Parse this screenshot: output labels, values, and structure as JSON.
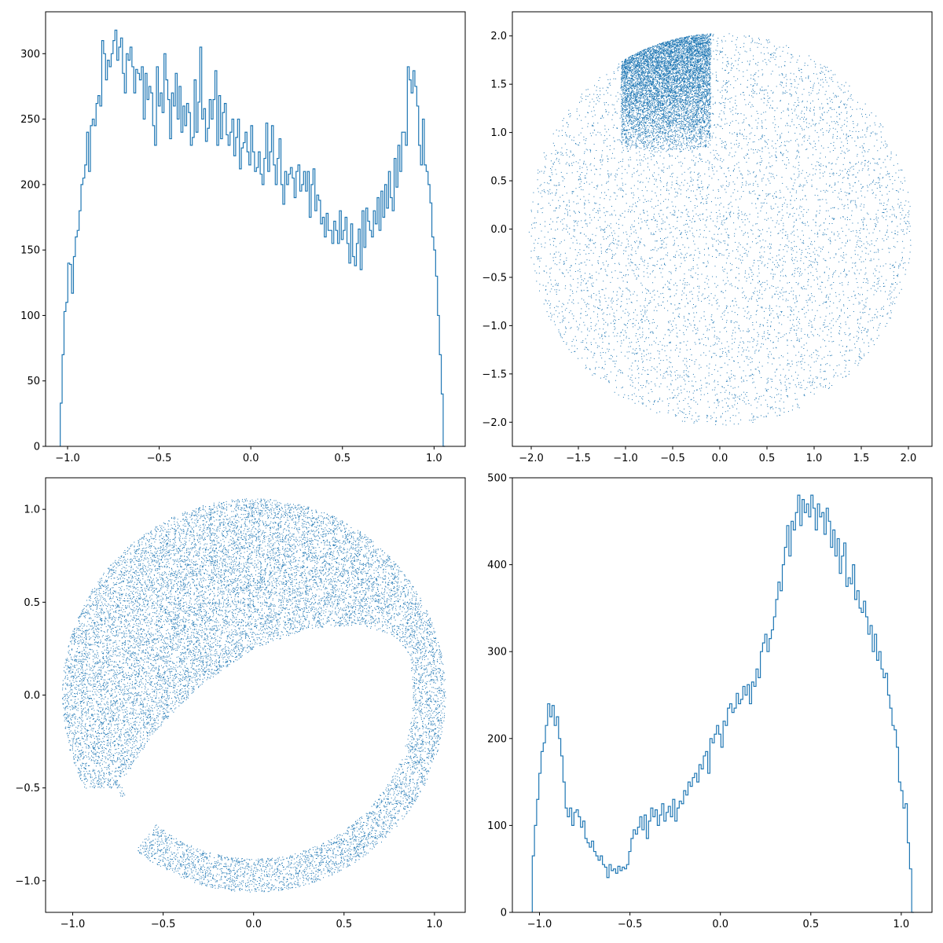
{
  "colors": {
    "series": "#1f77b4",
    "axes": "#000000",
    "background": "#ffffff"
  },
  "chart_data": [
    {
      "id": "top-left",
      "type": "histogram",
      "histtype": "step",
      "title": "",
      "xlabel": "",
      "ylabel": "",
      "xlim": [
        -1.12,
        1.17
      ],
      "ylim": [
        0,
        332
      ],
      "xticks": [
        -1.0,
        -0.5,
        0.0,
        0.5,
        1.0
      ],
      "yticks": [
        0,
        50,
        100,
        150,
        200,
        250,
        300
      ],
      "bin_range": [
        -1.04,
        1.06
      ],
      "counts": [
        33,
        70,
        103,
        110,
        140,
        139,
        117,
        145,
        160,
        165,
        180,
        200,
        205,
        215,
        240,
        210,
        245,
        250,
        245,
        262,
        268,
        260,
        310,
        300,
        280,
        295,
        290,
        300,
        310,
        318,
        295,
        305,
        312,
        285,
        270,
        300,
        295,
        305,
        290,
        270,
        288,
        285,
        280,
        290,
        250,
        285,
        265,
        275,
        270,
        245,
        230,
        290,
        260,
        270,
        255,
        300,
        280,
        265,
        235,
        270,
        260,
        285,
        250,
        275,
        240,
        260,
        245,
        262,
        255,
        230,
        236,
        280,
        240,
        263,
        305,
        250,
        258,
        233,
        243,
        265,
        250,
        265,
        287,
        230,
        268,
        235,
        255,
        262,
        238,
        230,
        240,
        250,
        222,
        236,
        250,
        212,
        228,
        232,
        240,
        225,
        215,
        245,
        225,
        210,
        213,
        225,
        208,
        200,
        220,
        247,
        210,
        225,
        245,
        215,
        200,
        220,
        235,
        200,
        185,
        210,
        200,
        208,
        213,
        205,
        190,
        210,
        215,
        195,
        200,
        210,
        195,
        210,
        175,
        200,
        212,
        180,
        192,
        188,
        170,
        175,
        160,
        178,
        165,
        165,
        155,
        172,
        165,
        155,
        180,
        158,
        165,
        175,
        155,
        140,
        170,
        145,
        138,
        155,
        166,
        135,
        180,
        152,
        182,
        172,
        165,
        160,
        180,
        170,
        190,
        165,
        195,
        175,
        200,
        182,
        210,
        190,
        180,
        220,
        198,
        230,
        210,
        240,
        240,
        230,
        290,
        280,
        270,
        287,
        275,
        260,
        230,
        215,
        250,
        215,
        210,
        200,
        186,
        160,
        150,
        130,
        100,
        70,
        40,
        0
      ]
    },
    {
      "id": "top-right",
      "type": "scatter",
      "title": "",
      "xlabel": "",
      "ylabel": "",
      "xlim": [
        -2.2,
        2.25
      ],
      "ylim": [
        -2.25,
        2.25
      ],
      "xticks": [
        -2.0,
        -1.5,
        -1.0,
        -0.5,
        0.0,
        0.5,
        1.0,
        1.5,
        2.0
      ],
      "yticks": [
        -2.0,
        -1.5,
        -1.0,
        -0.5,
        0.0,
        0.5,
        1.0,
        1.5,
        2.0
      ],
      "marker_size_px": 1,
      "disk_radius": 2.03,
      "dense_cluster": {
        "x_range": [
          -1.05,
          -0.1
        ],
        "y_range": [
          0.8,
          2.03
        ]
      }
    },
    {
      "id": "bottom-left",
      "type": "scatter",
      "title": "",
      "xlabel": "",
      "ylabel": "",
      "xlim": [
        -1.15,
        1.17
      ],
      "ylim": [
        -1.17,
        1.17
      ],
      "xticks": [
        -1.0,
        -0.5,
        0.0,
        0.5,
        1.0
      ],
      "yticks": [
        -1.0,
        -0.5,
        0.0,
        0.5,
        1.0
      ],
      "marker_size_px": 1,
      "annulus": {
        "outer_radius": 1.06,
        "inner_radius": 0.88
      },
      "filled_cap_boundary": [
        [
          -0.72,
          -0.45
        ],
        [
          -0.55,
          -0.2
        ],
        [
          -0.3,
          0.05
        ],
        [
          0.0,
          0.25
        ],
        [
          0.3,
          0.36
        ],
        [
          0.6,
          0.38
        ],
        [
          0.8,
          0.3
        ],
        [
          0.95,
          0.1
        ]
      ]
    },
    {
      "id": "bottom-right",
      "type": "histogram",
      "histtype": "step",
      "title": "",
      "xlabel": "",
      "ylabel": "",
      "xlim": [
        -1.15,
        1.17
      ],
      "ylim": [
        0,
        500
      ],
      "xticks": [
        -1.0,
        -0.5,
        0.0,
        0.5,
        1.0
      ],
      "yticks": [
        0,
        100,
        200,
        300,
        400,
        500
      ],
      "bin_range": [
        -1.04,
        1.07
      ],
      "counts": [
        65,
        100,
        130,
        160,
        185,
        195,
        215,
        240,
        225,
        238,
        215,
        225,
        200,
        180,
        150,
        120,
        110,
        120,
        100,
        115,
        118,
        110,
        98,
        105,
        85,
        80,
        75,
        82,
        70,
        65,
        60,
        65,
        55,
        52,
        40,
        55,
        48,
        50,
        45,
        53,
        48,
        52,
        50,
        55,
        70,
        85,
        95,
        90,
        98,
        110,
        95,
        112,
        85,
        105,
        120,
        110,
        118,
        100,
        112,
        125,
        105,
        115,
        122,
        110,
        130,
        105,
        120,
        128,
        125,
        140,
        135,
        150,
        145,
        155,
        160,
        150,
        170,
        165,
        180,
        185,
        160,
        200,
        195,
        205,
        215,
        205,
        190,
        220,
        215,
        235,
        240,
        230,
        235,
        252,
        240,
        245,
        260,
        250,
        262,
        240,
        265,
        260,
        280,
        270,
        300,
        310,
        320,
        300,
        315,
        325,
        340,
        360,
        380,
        370,
        400,
        420,
        445,
        410,
        450,
        440,
        460,
        480,
        445,
        475,
        460,
        470,
        455,
        480,
        465,
        440,
        470,
        455,
        460,
        435,
        465,
        450,
        420,
        440,
        410,
        430,
        390,
        410,
        425,
        375,
        385,
        378,
        400,
        360,
        370,
        350,
        345,
        358,
        340,
        320,
        330,
        300,
        320,
        290,
        300,
        280,
        270,
        275,
        250,
        235,
        215,
        210,
        190,
        150,
        140,
        120,
        125,
        80,
        50,
        0
      ]
    }
  ]
}
